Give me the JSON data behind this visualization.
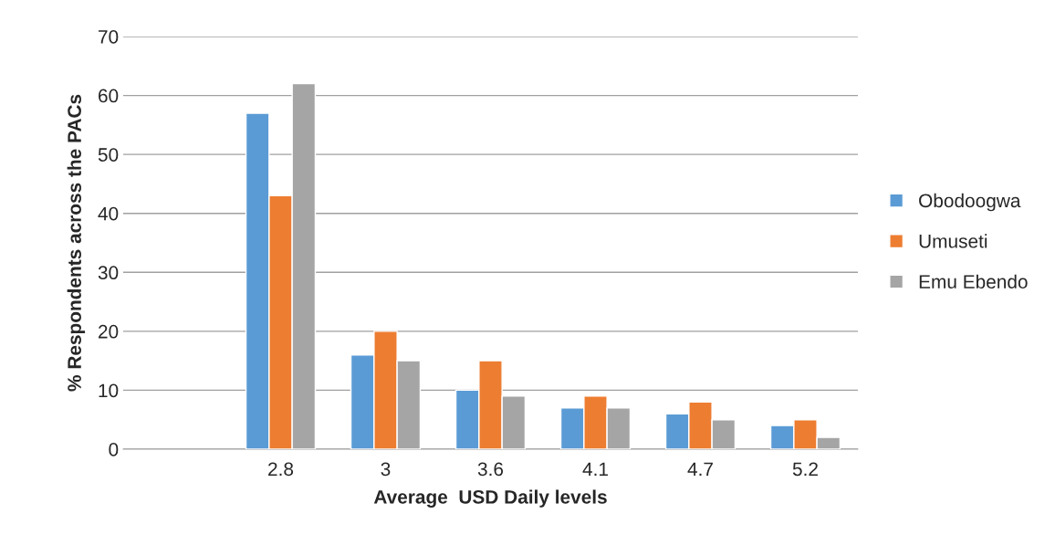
{
  "chart_data": {
    "type": "bar",
    "xlabel": "Average  USD Daily levels",
    "ylabel": "% Respondents across the PACs",
    "categories": [
      null,
      "2.8",
      "3",
      "3.6",
      "4.1",
      "4.7",
      "5.2"
    ],
    "series": [
      {
        "name": "Obodoogwa",
        "color": "#5b9bd5",
        "values": [
          null,
          57,
          16,
          10,
          7,
          6,
          4
        ]
      },
      {
        "name": "Umuseti",
        "color": "#ed7d31",
        "values": [
          null,
          43,
          20,
          15,
          9,
          8,
          5
        ]
      },
      {
        "name": "Emu Ebendo",
        "color": "#a5a5a5",
        "values": [
          null,
          62,
          15,
          9,
          7,
          5,
          2
        ]
      }
    ],
    "ylim": [
      0,
      70
    ],
    "yticks": [
      0,
      10,
      20,
      30,
      40,
      50,
      60,
      70
    ],
    "grid": "y",
    "legend": "right"
  }
}
